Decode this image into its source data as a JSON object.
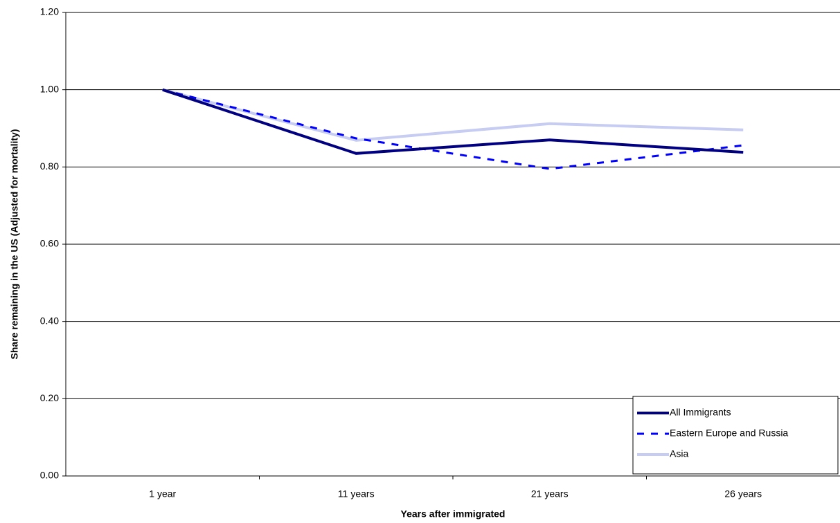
{
  "chart_data": {
    "type": "line",
    "x_label": "Years after immigrated",
    "y_label": "Share remaining in the US (Adjusted for mortality)",
    "categories": [
      "1 year",
      "11 years",
      "21 years",
      "26 years"
    ],
    "series": [
      {
        "name": "All Immigrants",
        "color": "#000080",
        "line_style": "solid",
        "values": [
          1.0,
          0.835,
          0.87,
          0.838
        ]
      },
      {
        "name": "Eastern Europe and Russia",
        "color": "#0000ff",
        "line_style": "dashed",
        "values": [
          1.0,
          0.874,
          0.795,
          0.856
        ]
      },
      {
        "name": "Asia",
        "color": "#c6ccf2",
        "line_style": "solid",
        "values": [
          1.0,
          0.869,
          0.912,
          0.896
        ]
      }
    ],
    "ylim": [
      0,
      1.2
    ],
    "yticks": [
      {
        "value": 0,
        "label": "0.00"
      },
      {
        "value": 0.2,
        "label": "0.20"
      },
      {
        "value": 0.4,
        "label": "0.40"
      },
      {
        "value": 0.6,
        "label": "0.60"
      },
      {
        "value": 0.8,
        "label": "0.80"
      },
      {
        "value": 1.0,
        "label": "1.00"
      },
      {
        "value": 1.2,
        "label": "1.20"
      }
    ],
    "grid": true,
    "legend": "lower right"
  }
}
